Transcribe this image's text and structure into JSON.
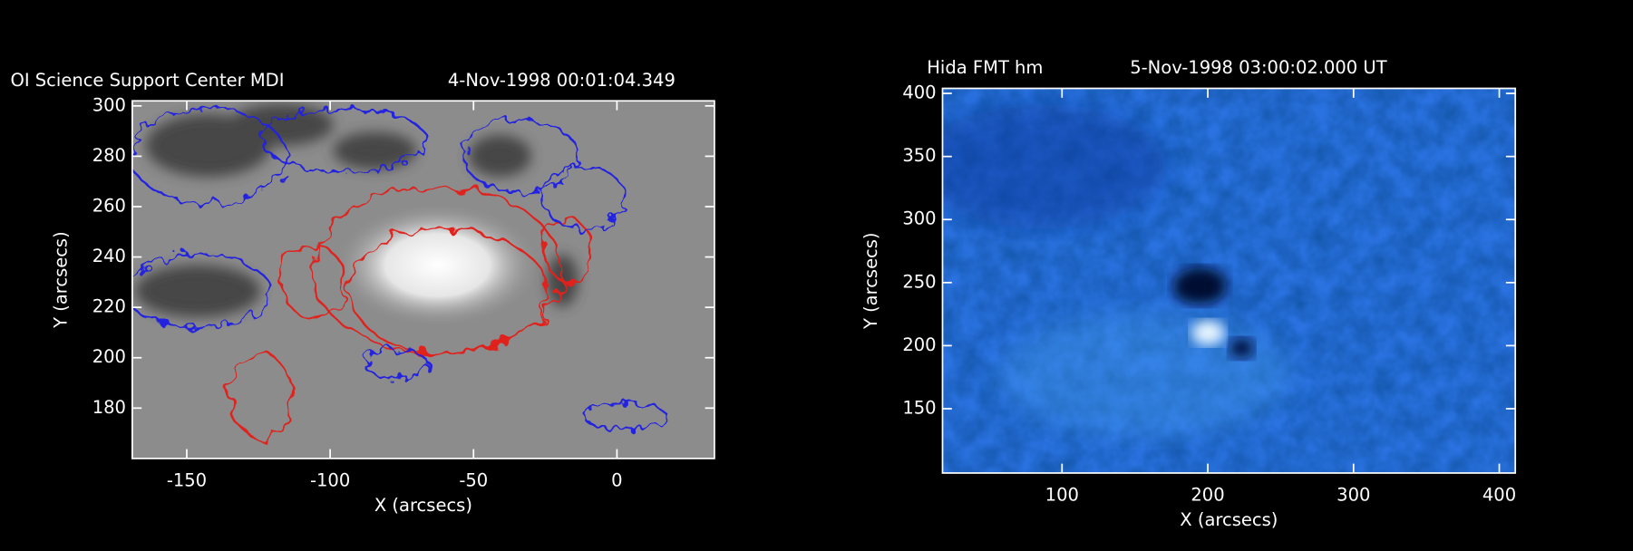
{
  "chart_data": [
    {
      "type": "image",
      "title": "OI Science Support Center MDI",
      "date": "4-Nov-1998 00:01:04.349",
      "xlabel": "X (arcsecs)",
      "ylabel": "Y (arcsecs)",
      "xlim": [
        -169,
        34
      ],
      "ylim": [
        160,
        302
      ],
      "xticks": [
        -150,
        -100,
        -50,
        0
      ],
      "yticks": [
        180,
        200,
        220,
        240,
        260,
        280,
        300
      ]
    },
    {
      "type": "image",
      "title": "Hida FMT hm",
      "date": "5-Nov-1998 03:00:02.000 UT",
      "xlabel": "X (arcsecs)",
      "ylabel": "Y (arcsecs)",
      "xlim": [
        18,
        411
      ],
      "ylim": [
        99,
        404
      ],
      "xticks": [
        100,
        200,
        300,
        400
      ],
      "yticks": [
        150,
        200,
        250,
        300,
        350,
        400
      ]
    }
  ]
}
